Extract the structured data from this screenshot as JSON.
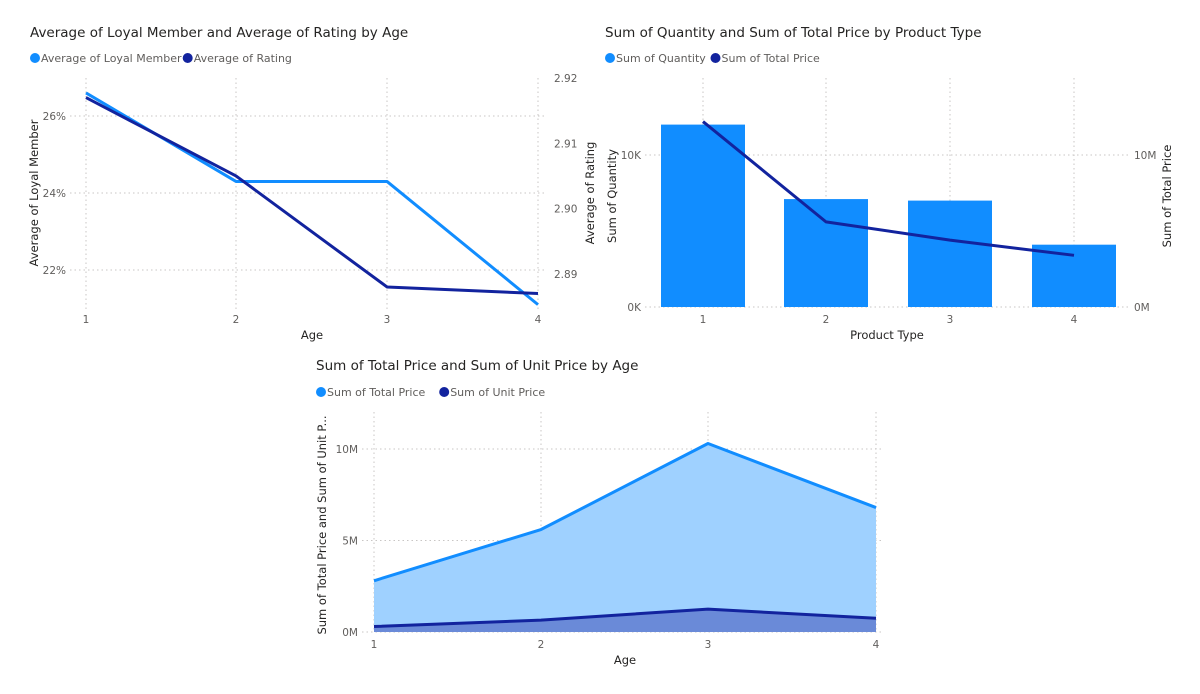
{
  "colors": {
    "light": "#118DFF",
    "dark": "#12239E",
    "light_area": "#9FD1FF",
    "dark_area": "#6A8AD8"
  },
  "chart_data": [
    {
      "type": "line",
      "title": "Average of Loyal Member and Average of Rating by Age",
      "legend_position": "top-left",
      "grid": true,
      "xlabel": "Age",
      "ylabel": "Average of Loyal Member",
      "y2label": "Average of Rating",
      "categories": [
        "1",
        "2",
        "3",
        "4"
      ],
      "y_ticks": [
        "22%",
        "24%",
        "26%"
      ],
      "y2_ticks": [
        "2.89",
        "2.90",
        "2.91",
        "2.92"
      ],
      "series": [
        {
          "name": "Average of Loyal Member",
          "axis": "left",
          "unit": "%",
          "values": [
            26.6,
            24.3,
            24.3,
            21.1
          ]
        },
        {
          "name": "Average of Rating",
          "axis": "right",
          "values": [
            2.917,
            2.905,
            2.888,
            2.887
          ]
        }
      ]
    },
    {
      "type": "bar",
      "title": "Sum of Quantity and Sum of Total Price by Product Type",
      "legend_position": "top-left",
      "grid": true,
      "xlabel": "Product Type",
      "ylabel": "Sum of Quantity",
      "y2label": "Sum of Total Price",
      "categories": [
        "1",
        "2",
        "3",
        "4"
      ],
      "y_ticks": [
        "0K",
        "10K"
      ],
      "y2_ticks": [
        "0M",
        "10M"
      ],
      "series": [
        {
          "name": "Sum of Quantity",
          "kind": "bar",
          "axis": "left",
          "values": [
            12000,
            7100,
            7000,
            4100
          ]
        },
        {
          "name": "Sum of Total Price",
          "kind": "line",
          "axis": "right",
          "values": [
            12200000,
            5600000,
            4400000,
            3400000
          ]
        }
      ]
    },
    {
      "type": "area",
      "title": "Sum of Total Price and Sum of Unit Price by Age",
      "legend_position": "top-left",
      "grid": true,
      "xlabel": "Age",
      "ylabel": "Sum of Total Price and Sum of Unit P...",
      "categories": [
        "1",
        "2",
        "3",
        "4"
      ],
      "y_ticks": [
        "0M",
        "5M",
        "10M"
      ],
      "series": [
        {
          "name": "Sum of Total Price",
          "values": [
            2800000,
            5600000,
            10300000,
            6800000
          ]
        },
        {
          "name": "Sum of Unit Price",
          "values": [
            300000,
            650000,
            1250000,
            750000
          ]
        }
      ]
    }
  ]
}
